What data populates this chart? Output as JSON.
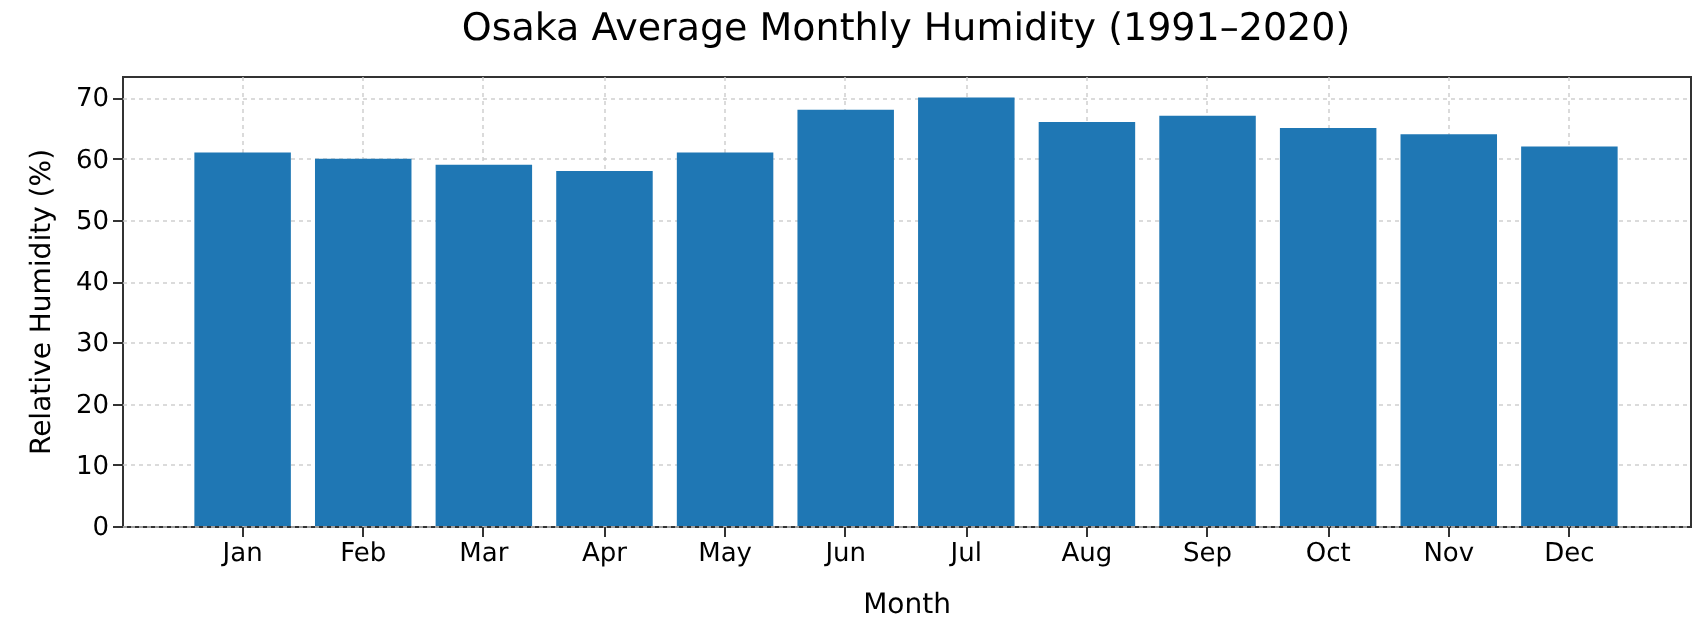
{
  "chart_data": {
    "type": "bar",
    "title": "Osaka Average Monthly Humidity (1991–2020)",
    "xlabel": "Month",
    "ylabel": "Relative Humidity (%)",
    "categories": [
      "Jan",
      "Feb",
      "Mar",
      "Apr",
      "May",
      "Jun",
      "Jul",
      "Aug",
      "Sep",
      "Oct",
      "Nov",
      "Dec"
    ],
    "values": [
      61,
      60,
      59,
      58,
      61,
      68,
      70,
      66,
      67,
      65,
      64,
      62
    ],
    "color": "#1f77b4",
    "ylim": [
      0,
      73.5
    ],
    "yticks": [
      0,
      10,
      20,
      30,
      40,
      50,
      60,
      70
    ],
    "grid": true
  }
}
